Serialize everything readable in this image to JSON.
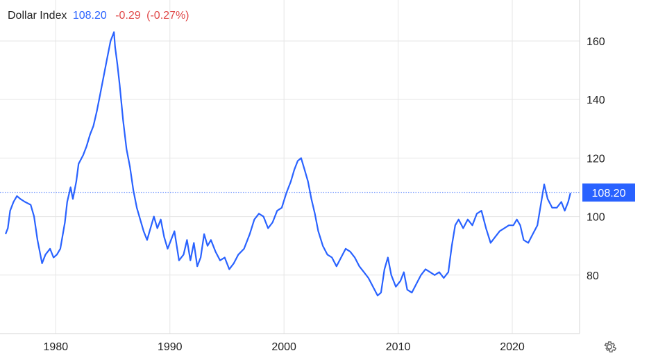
{
  "header": {
    "name": "Dollar Index",
    "price": "108.20",
    "change": "-0.29",
    "change_pct": "(-0.27%)"
  },
  "colors": {
    "line": "#2962ff",
    "negative": "#e04848",
    "grid": "#e6e6e6",
    "text": "#222222"
  },
  "icons": {
    "settings": "gear-icon"
  },
  "chart_data": {
    "type": "line",
    "title": "Dollar Index",
    "xlim": [
      1975.6,
      2025.9
    ],
    "ylim": [
      60,
      174
    ],
    "x_ticks": [
      1980,
      1990,
      2000,
      2010,
      2020
    ],
    "x_tick_labels": [
      "1980",
      "1990",
      "2000",
      "2010",
      "2020"
    ],
    "y_ticks": [
      80,
      100,
      120,
      140,
      160
    ],
    "y_tick_labels": [
      "80",
      "100",
      "120",
      "140",
      "160"
    ],
    "grid": true,
    "last_value": 108.2,
    "last_value_label": "108.20",
    "series": [
      {
        "x": [
          1975.6,
          1975.8,
          1976.0,
          1976.3,
          1976.6,
          1976.9,
          1977.3,
          1977.8,
          1978.1,
          1978.4,
          1978.8,
          1979.1,
          1979.5,
          1979.8,
          1980.1,
          1980.4,
          1980.8,
          1981.0,
          1981.3,
          1981.5,
          1981.8,
          1982.0,
          1982.4,
          1982.7,
          1983.0,
          1983.3,
          1983.6,
          1983.9,
          1984.2,
          1984.5,
          1984.8,
          1985.1,
          1985.2,
          1985.4,
          1985.6,
          1985.9,
          1986.2,
          1986.5,
          1986.8,
          1987.1,
          1987.4,
          1987.7,
          1988.0,
          1988.3,
          1988.6,
          1988.9,
          1989.2,
          1989.5,
          1989.8,
          1990.1,
          1990.4,
          1990.8,
          1991.2,
          1991.5,
          1991.8,
          1992.1,
          1992.4,
          1992.7,
          1993.0,
          1993.3,
          1993.6,
          1994.0,
          1994.4,
          1994.8,
          1995.2,
          1995.6,
          1996.0,
          1996.5,
          1997.0,
          1997.4,
          1997.8,
          1998.2,
          1998.6,
          1999.0,
          1999.4,
          1999.8,
          2000.2,
          2000.6,
          2000.9,
          2001.2,
          2001.5,
          2001.8,
          2002.1,
          2002.4,
          2002.7,
          2003.0,
          2003.4,
          2003.8,
          2004.2,
          2004.6,
          2005.0,
          2005.4,
          2005.8,
          2006.2,
          2006.6,
          2007.0,
          2007.4,
          2007.8,
          2008.2,
          2008.5,
          2008.8,
          2009.1,
          2009.4,
          2009.8,
          2010.2,
          2010.5,
          2010.8,
          2011.2,
          2011.6,
          2012.0,
          2012.4,
          2012.8,
          2013.2,
          2013.6,
          2014.0,
          2014.4,
          2014.7,
          2015.0,
          2015.3,
          2015.7,
          2016.1,
          2016.5,
          2016.9,
          2017.3,
          2017.7,
          2018.1,
          2018.5,
          2018.9,
          2019.3,
          2019.7,
          2020.1,
          2020.4,
          2020.7,
          2021.0,
          2021.4,
          2021.8,
          2022.2,
          2022.5,
          2022.8,
          2023.1,
          2023.5,
          2023.9,
          2024.3,
          2024.6,
          2024.9,
          2025.1
        ],
        "y": [
          94,
          96,
          102,
          105,
          107,
          106,
          105,
          104,
          100,
          92,
          84,
          87,
          89,
          86,
          87,
          89,
          98,
          105,
          110,
          106,
          112,
          118,
          121,
          124,
          128,
          131,
          136,
          142,
          148,
          154,
          160,
          163,
          158,
          152,
          145,
          133,
          123,
          117,
          109,
          103,
          99,
          95,
          92,
          96,
          100,
          96,
          99,
          93,
          89,
          92,
          95,
          85,
          87,
          92,
          85,
          91,
          83,
          86,
          94,
          90,
          92,
          88,
          85,
          86,
          82,
          84,
          87,
          89,
          94,
          99,
          101,
          100,
          96,
          98,
          102,
          103,
          108,
          112,
          116,
          119,
          120,
          116,
          112,
          106,
          101,
          95,
          90,
          87,
          86,
          83,
          86,
          89,
          88,
          86,
          83,
          81,
          79,
          76,
          73,
          74,
          82,
          86,
          80,
          76,
          78,
          81,
          75,
          74,
          77,
          80,
          82,
          81,
          80,
          81,
          79,
          81,
          90,
          97,
          99,
          96,
          99,
          97,
          101,
          102,
          96,
          91,
          93,
          95,
          96,
          97,
          97,
          99,
          97,
          92,
          91,
          94,
          97,
          104,
          111,
          106,
          103,
          103,
          105,
          102,
          105,
          108
        ]
      }
    ]
  }
}
